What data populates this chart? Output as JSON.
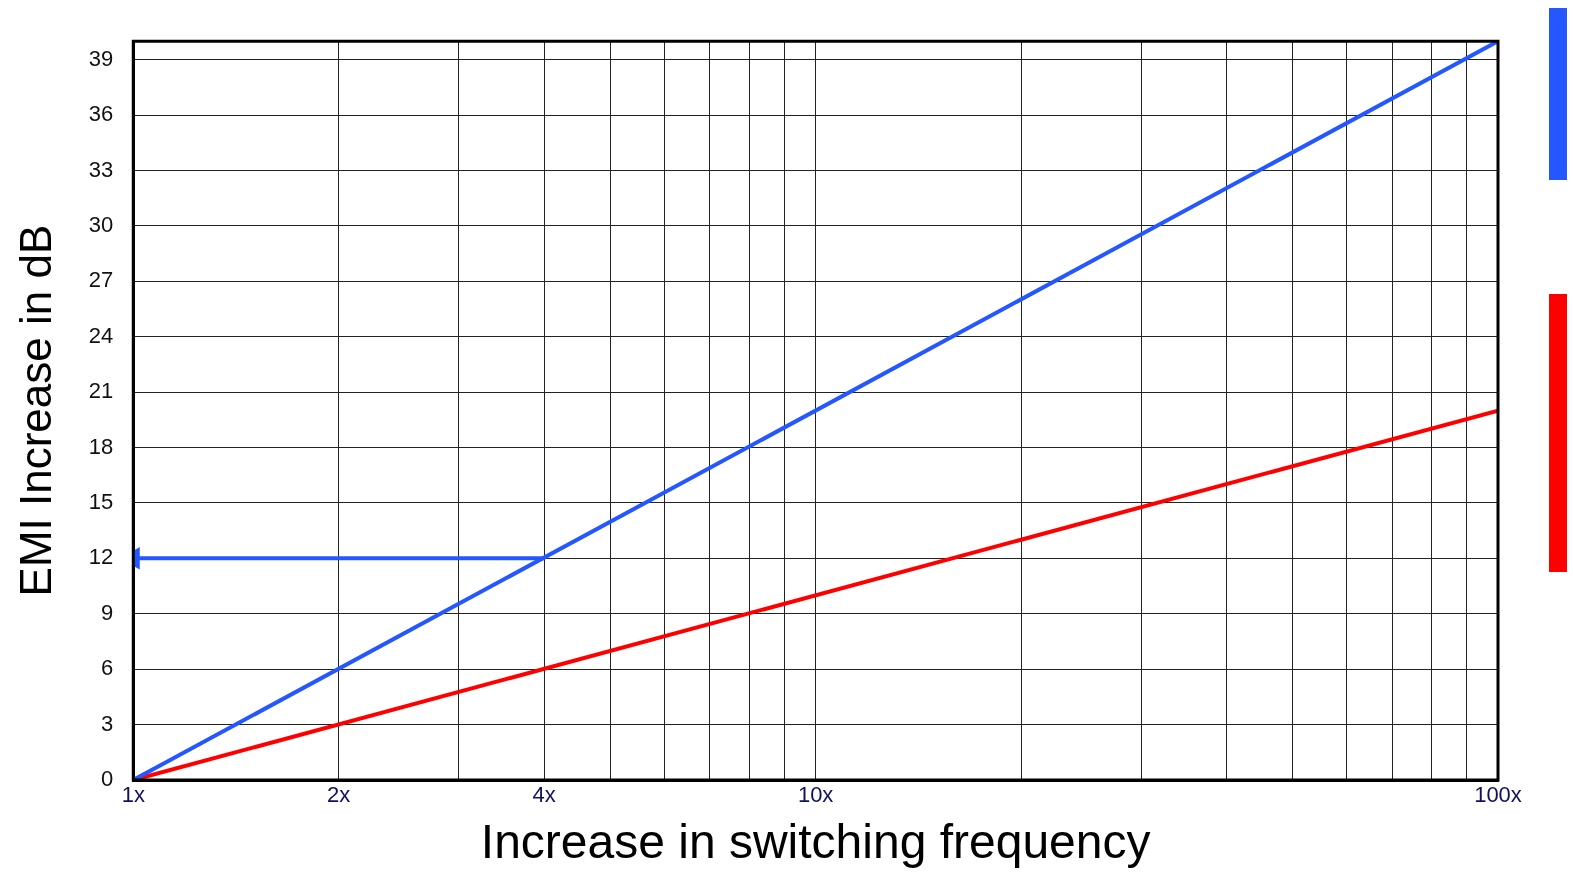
{
  "chart_data": {
    "type": "line",
    "xlabel": "Increase in switching frequency",
    "ylabel": "EMI Increase in dB",
    "x": [
      1,
      100
    ],
    "series": [
      {
        "color": "#2457ff",
        "values": [
          0,
          40
        ]
      },
      {
        "color": "#ff0000",
        "values": [
          0,
          20
        ]
      },
      {
        "color": "#2457ff",
        "x": [
          1,
          4
        ],
        "values": [
          12,
          12
        ],
        "marker": "triangle"
      }
    ],
    "log": "x",
    "xlim": [
      1,
      100
    ],
    "ylim": [
      0,
      40
    ],
    "xticks": [
      {
        "value": 1,
        "label": "1x"
      },
      {
        "value": 2,
        "label": "2x"
      },
      {
        "value": 3,
        "label": null
      },
      {
        "value": 4,
        "label": "4x"
      },
      {
        "value": 5,
        "label": null
      },
      {
        "value": 6,
        "label": null
      },
      {
        "value": 7,
        "label": null
      },
      {
        "value": 8,
        "label": null
      },
      {
        "value": 9,
        "label": null
      },
      {
        "value": 10,
        "label": "10x"
      },
      {
        "value": 20,
        "label": null
      },
      {
        "value": 30,
        "label": null
      },
      {
        "value": 40,
        "label": null
      },
      {
        "value": 50,
        "label": null
      },
      {
        "value": 60,
        "label": null
      },
      {
        "value": 70,
        "label": null
      },
      {
        "value": 80,
        "label": null
      },
      {
        "value": 90,
        "label": null
      },
      {
        "value": 100,
        "label": "100x"
      }
    ],
    "yticks": [
      0,
      3,
      6,
      9,
      12,
      15,
      18,
      21,
      24,
      27,
      30,
      33,
      36,
      39
    ],
    "grid": true,
    "legend": false,
    "marker": "none",
    "line_style": "solid"
  }
}
